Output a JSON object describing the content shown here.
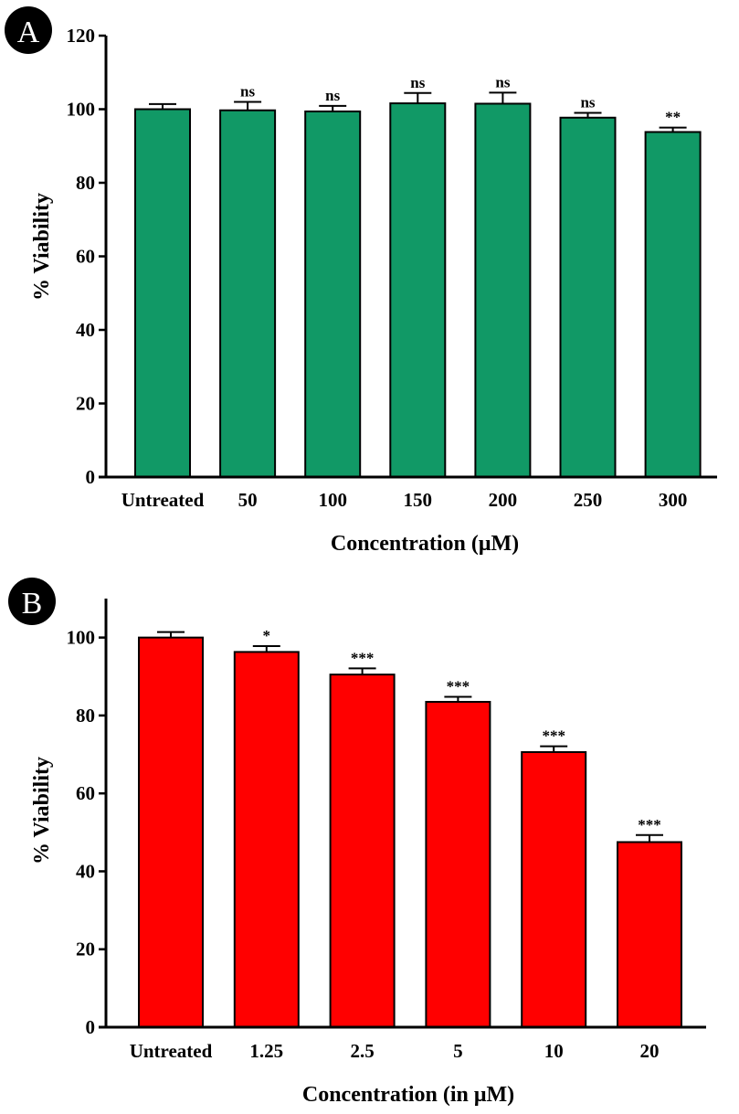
{
  "chart_data": [
    {
      "panel_label": "A",
      "type": "bar",
      "title": "",
      "xlabel": "Concentration (μM)",
      "ylabel": "% Viability",
      "ylim": [
        0,
        120
      ],
      "yticks": [
        "0",
        "20",
        "40",
        "60",
        "80",
        "100",
        "120"
      ],
      "categories": [
        "Untreated",
        "50",
        "100",
        "150",
        "200",
        "250",
        "300"
      ],
      "values": [
        100,
        99.7,
        99.4,
        101.6,
        101.5,
        97.7,
        93.8
      ],
      "errors": [
        1.4,
        2.3,
        1.5,
        2.8,
        3.0,
        1.3,
        1.2
      ],
      "significance": [
        "",
        "ns",
        "ns",
        "ns",
        "ns",
        "ns",
        "**"
      ],
      "bar_color": "#119966",
      "grid": false
    },
    {
      "panel_label": "B",
      "type": "bar",
      "title": "",
      "xlabel": "Concentration (in μM)",
      "ylabel": "% Viability",
      "ylim": [
        0,
        110
      ],
      "yticks": [
        "0",
        "20",
        "40",
        "60",
        "80",
        "100"
      ],
      "categories": [
        "Untreated",
        "1.25",
        "2.5",
        "5",
        "10",
        "20"
      ],
      "values": [
        100,
        96.3,
        90.5,
        83.5,
        70.6,
        47.5
      ],
      "errors": [
        1.4,
        1.5,
        1.6,
        1.3,
        1.5,
        1.8
      ],
      "significance": [
        "",
        "*",
        "***",
        "***",
        "***",
        "***"
      ],
      "bar_color": "#ff0000",
      "grid": false
    }
  ]
}
